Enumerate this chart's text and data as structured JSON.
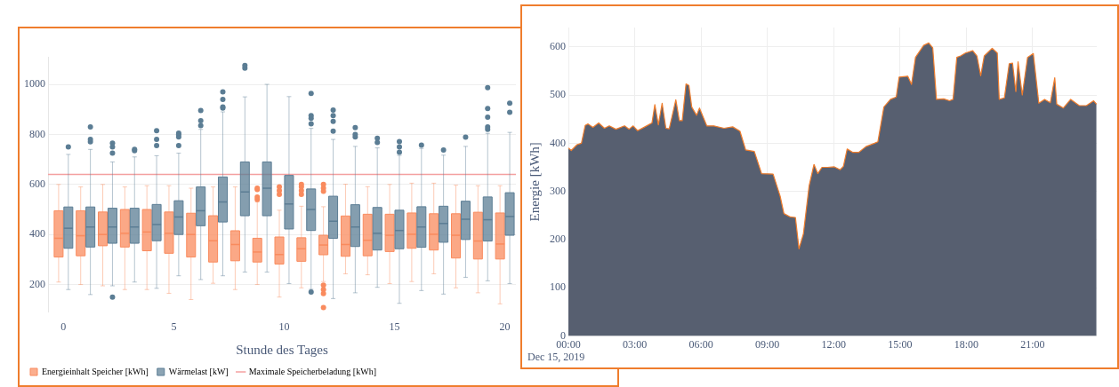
{
  "chart_data": [
    {
      "type": "box",
      "xlabel": "Stunde des Tages",
      "categories": [
        "0",
        null,
        null,
        null,
        null,
        "5",
        null,
        null,
        null,
        null,
        "10",
        null,
        null,
        null,
        null,
        "15",
        null,
        null,
        null,
        null,
        "20"
      ],
      "series": [
        {
          "name": "Energieinhalt Speicher [kWh]",
          "color": "#f98b5e",
          "boxes": [
            {
              "low": 210,
              "q1": 310,
              "median": 385,
              "q3": 495,
              "high": 600
            },
            {
              "low": 200,
              "q1": 315,
              "median": 395,
              "q3": 495,
              "high": 590
            },
            {
              "low": 195,
              "q1": 355,
              "median": 400,
              "q3": 490,
              "high": 600
            },
            {
              "low": 180,
              "q1": 350,
              "median": 405,
              "q3": 500,
              "high": 590
            },
            {
              "low": 180,
              "q1": 335,
              "median": 410,
              "q3": 500,
              "high": 595
            },
            {
              "low": 165,
              "q1": 325,
              "median": 405,
              "q3": 490,
              "high": 595
            },
            {
              "low": 140,
              "q1": 310,
              "median": 400,
              "q3": 485,
              "high": 585
            },
            {
              "low": 205,
              "q1": 290,
              "median": 375,
              "q3": 475,
              "high": 590
            },
            {
              "low": 180,
              "q1": 295,
              "median": 360,
              "q3": 415,
              "high": 590
            },
            {
              "low": 200,
              "q1": 290,
              "median": 330,
              "q3": 385,
              "high": 530,
              "outliers": [
                540,
                550,
                580,
                585
              ]
            },
            {
              "low": 150,
              "q1": 282,
              "median": 320,
              "q3": 390,
              "high": 497,
              "outliers": [
                560,
                575,
                590
              ]
            },
            {
              "low": 187,
              "q1": 293,
              "median": 343,
              "q3": 387,
              "high": 513,
              "outliers": [
                560,
                575,
                590,
                600
              ]
            },
            {
              "low": 212,
              "q1": 319,
              "median": 358,
              "q3": 397,
              "high": 511,
              "outliers": [
                573,
                585,
                600,
                198,
                180,
                164,
                108
              ]
            },
            {
              "low": 243,
              "q1": 313,
              "median": 360,
              "q3": 474,
              "high": 601
            },
            {
              "low": 239,
              "q1": 315,
              "median": 377,
              "q3": 481,
              "high": 591
            },
            {
              "low": 204,
              "q1": 332,
              "median": 397,
              "q3": 481,
              "high": 600
            },
            {
              "low": 212,
              "q1": 345,
              "median": 401,
              "q3": 486,
              "high": 605
            },
            {
              "low": 243,
              "q1": 338,
              "median": 401,
              "q3": 483,
              "high": 605
            },
            {
              "low": 187,
              "q1": 306,
              "median": 397,
              "q3": 483,
              "high": 597
            },
            {
              "low": 167,
              "q1": 302,
              "median": 374,
              "q3": 489,
              "high": 595
            },
            {
              "low": 123,
              "q1": 302,
              "median": 362,
              "q3": 486,
              "high": 595
            }
          ]
        },
        {
          "name": "Wärmelast [kW]",
          "color": "#5b7d94",
          "boxes": [
            {
              "low": 180,
              "q1": 345,
              "median": 425,
              "q3": 510,
              "high": 720,
              "outliers": [
                750
              ]
            },
            {
              "low": 160,
              "q1": 350,
              "median": 430,
              "q3": 510,
              "high": 740,
              "outliers": [
                770,
                780,
                830
              ]
            },
            {
              "low": 195,
              "q1": 365,
              "median": 430,
              "q3": 505,
              "high": 690,
              "outliers": [
                150,
                725,
                750,
                765
              ]
            },
            {
              "low": 210,
              "q1": 365,
              "median": 430,
              "q3": 505,
              "high": 710,
              "outliers": [
                735,
                740
              ]
            },
            {
              "low": 185,
              "q1": 375,
              "median": 440,
              "q3": 520,
              "high": 715,
              "outliers": [
                755,
                780,
                815
              ]
            },
            {
              "low": 235,
              "q1": 400,
              "median": 470,
              "q3": 535,
              "high": 725,
              "outliers": [
                755,
                790,
                800,
                805
              ]
            },
            {
              "low": 220,
              "q1": 435,
              "median": 495,
              "q3": 590,
              "high": 820,
              "outliers": [
                835,
                855,
                895
              ]
            },
            {
              "low": 235,
              "q1": 450,
              "median": 530,
              "q3": 630,
              "high": 890,
              "outliers": [
                905,
                910,
                940,
                970
              ]
            },
            {
              "low": 250,
              "q1": 475,
              "median": 570,
              "q3": 690,
              "high": 950,
              "outliers": [
                1065,
                1075
              ]
            },
            {
              "low": 250,
              "q1": 475,
              "median": 585,
              "q3": 690,
              "high": 1000
            },
            {
              "low": 204,
              "q1": 422,
              "median": 522,
              "q3": 636,
              "high": 951
            },
            {
              "low": 181,
              "q1": 416,
              "median": 500,
              "q3": 582,
              "high": 824,
              "outliers": [
                842,
                864,
                875,
                964,
                170
              ]
            },
            {
              "low": 144,
              "q1": 385,
              "median": 453,
              "q3": 553,
              "high": 780,
              "outliers": [
                813,
                852,
                875,
                897
              ]
            },
            {
              "low": 167,
              "q1": 352,
              "median": 430,
              "q3": 519,
              "high": 752,
              "outliers": [
                790,
                800,
                827
              ]
            },
            {
              "low": 189,
              "q1": 338,
              "median": 405,
              "q3": 508,
              "high": 746,
              "outliers": [
                768,
                785
              ]
            },
            {
              "low": 125,
              "q1": 343,
              "median": 416,
              "q3": 497,
              "high": 716,
              "outliers": [
                729,
                750,
                771
              ]
            },
            {
              "low": 176,
              "q1": 349,
              "median": 430,
              "q3": 511,
              "high": 744,
              "outliers": [
                757
              ]
            },
            {
              "low": 162,
              "q1": 369,
              "median": 444,
              "q3": 513,
              "high": 717,
              "outliers": [
                738
              ]
            },
            {
              "low": 229,
              "q1": 380,
              "median": 461,
              "q3": 533,
              "high": 752,
              "outliers": [
                789
              ]
            },
            {
              "low": 215,
              "q1": 374,
              "median": 459,
              "q3": 550,
              "high": 804,
              "outliers": [
                820,
                830,
                869,
                903,
                987
              ]
            },
            {
              "low": 204,
              "q1": 397,
              "median": 472,
              "q3": 567,
              "high": 808,
              "outliers": [
                888,
                925
              ]
            }
          ]
        }
      ],
      "ylim": [
        90,
        1110
      ],
      "yticks": [
        200,
        400,
        600,
        800,
        1000
      ],
      "ref_lines": [
        {
          "axis": "y",
          "value": 640,
          "label": "Maximale Speicherbeladung [kWh]",
          "color": "#f4a0a0"
        }
      ],
      "grid": "y",
      "legend": "bottom left"
    },
    {
      "type": "area",
      "ylabel": "Energie [kWh]",
      "color": "#575f70",
      "marker": "none",
      "x": [
        0,
        0.13,
        0.39,
        0.59,
        0.76,
        0.89,
        1.11,
        1.37,
        1.63,
        1.85,
        2.15,
        2.54,
        2.74,
        2.93,
        3.13,
        3.46,
        3.78,
        3.91,
        4.07,
        4.24,
        4.41,
        4.56,
        4.86,
        5.02,
        5.15,
        5.32,
        5.45,
        5.58,
        5.8,
        5.93,
        6.26,
        6.58,
        7.04,
        7.43,
        7.76,
        8.02,
        8.41,
        8.74,
        9.26,
        9.58,
        9.75,
        10.04,
        10.27,
        10.43,
        10.63,
        10.89,
        11.11,
        11.28,
        11.47,
        11.73,
        12.03,
        12.29,
        12.44,
        12.61,
        12.87,
        13.13,
        13.46,
        13.85,
        14,
        14.27,
        14.57,
        14.83,
        14.96,
        15.35,
        15.52,
        15.7,
        16.07,
        16.3,
        16.48,
        16.65,
        16.98,
        17.24,
        17.4,
        17.57,
        17.74,
        17.96,
        18.29,
        18.48,
        18.65,
        18.81,
        19.17,
        19.4,
        19.49,
        19.72,
        19.94,
        20.09,
        20.24,
        20.34,
        20.53,
        20.77,
        21.03,
        21.28,
        21.54,
        21.8,
        22,
        22.09,
        22.39,
        22.72,
        23.11,
        23.43,
        23.76,
        23.89
      ],
      "values": [
        390,
        385,
        397,
        400,
        437,
        440,
        433,
        442,
        431,
        436,
        429,
        436,
        429,
        436,
        426,
        434,
        442,
        480,
        438,
        483,
        431,
        430,
        490,
        447,
        447,
        523,
        520,
        475,
        458,
        473,
        436,
        436,
        431,
        434,
        425,
        386,
        383,
        337,
        336,
        290,
        254,
        247,
        246,
        181,
        212,
        312,
        356,
        337,
        350,
        350,
        351,
        345,
        352,
        388,
        381,
        381,
        393,
        400,
        403,
        475,
        491,
        496,
        537,
        539,
        522,
        578,
        603,
        608,
        598,
        491,
        492,
        488,
        491,
        578,
        581,
        587,
        592,
        581,
        540,
        581,
        597,
        587,
        491,
        494,
        565,
        566,
        507,
        569,
        500,
        578,
        586,
        483,
        491,
        484,
        536,
        481,
        473,
        491,
        478,
        478,
        488,
        481
      ],
      "xlim": [
        0,
        23.9
      ],
      "xticks": [
        {
          "value": 0,
          "label": "00:00"
        },
        {
          "value": 3,
          "label": "03:00"
        },
        {
          "value": 6,
          "label": "06:00"
        },
        {
          "value": 9,
          "label": "09:00"
        },
        {
          "value": 12,
          "label": "12:00"
        },
        {
          "value": 15,
          "label": "15:00"
        },
        {
          "value": 18,
          "label": "18:00"
        },
        {
          "value": 21,
          "label": "21:00"
        }
      ],
      "ylim": [
        0,
        640
      ],
      "yticks": [
        0,
        100,
        200,
        300,
        400,
        500,
        600
      ],
      "annotations": [
        "Dec 15, 2019"
      ],
      "grid": true
    }
  ]
}
